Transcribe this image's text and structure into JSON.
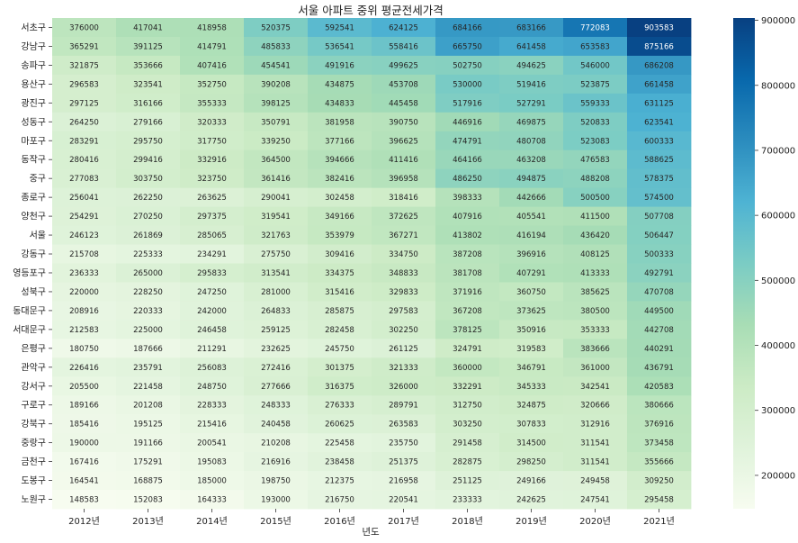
{
  "chart_data": {
    "type": "heatmap",
    "title": "서울 아파트 중위 평균전세가격",
    "xlabel": "년도",
    "ylabel": "",
    "colormap": "GnBu",
    "colorbar": {
      "range": [
        148583,
        903583
      ],
      "ticks": [
        200000,
        300000,
        400000,
        500000,
        600000,
        700000,
        800000,
        900000
      ],
      "tick_labels": [
        "200000",
        "300000",
        "400000",
        "500000",
        "600000",
        "700000",
        "800000",
        "900000"
      ]
    },
    "columns": [
      "2012년",
      "2013년",
      "2014년",
      "2015년",
      "2016년",
      "2017년",
      "2018년",
      "2019년",
      "2020년",
      "2021년"
    ],
    "rows": [
      {
        "label": "서초구",
        "values": [
          376000,
          417041,
          418958,
          520375,
          592541,
          624125,
          684166,
          683166,
          772083,
          903583
        ]
      },
      {
        "label": "강남구",
        "values": [
          365291,
          391125,
          414791,
          485833,
          536541,
          558416,
          665750,
          641458,
          653583,
          875166
        ]
      },
      {
        "label": "송파구",
        "values": [
          321875,
          353666,
          407416,
          454541,
          491916,
          499625,
          502750,
          494625,
          546000,
          686208
        ]
      },
      {
        "label": "용산구",
        "values": [
          296583,
          323541,
          352750,
          390208,
          434875,
          453708,
          530000,
          519416,
          523875,
          661458
        ]
      },
      {
        "label": "광진구",
        "values": [
          297125,
          316166,
          355333,
          398125,
          434833,
          445458,
          517916,
          527291,
          559333,
          631125
        ]
      },
      {
        "label": "성동구",
        "values": [
          264250,
          279166,
          320333,
          350791,
          381958,
          390750,
          446916,
          469875,
          520833,
          623541
        ]
      },
      {
        "label": "마포구",
        "values": [
          283291,
          295750,
          317750,
          339250,
          377166,
          396625,
          474791,
          480708,
          523083,
          600333
        ]
      },
      {
        "label": "동작구",
        "values": [
          280416,
          299416,
          332916,
          364500,
          394666,
          411416,
          464166,
          463208,
          476583,
          588625
        ]
      },
      {
        "label": "중구",
        "values": [
          277083,
          303750,
          323750,
          361416,
          382416,
          396958,
          486250,
          494875,
          488208,
          578375
        ]
      },
      {
        "label": "종로구",
        "values": [
          256041,
          262250,
          263625,
          290041,
          302458,
          318416,
          398333,
          442666,
          500500,
          574500
        ]
      },
      {
        "label": "양천구",
        "values": [
          254291,
          270250,
          297375,
          319541,
          349166,
          372625,
          407916,
          405541,
          411500,
          507708
        ]
      },
      {
        "label": "서울",
        "values": [
          246123,
          261869,
          285065,
          321763,
          353979,
          367271,
          413802,
          416194,
          436420,
          506447
        ]
      },
      {
        "label": "강동구",
        "values": [
          215708,
          225333,
          234291,
          275750,
          309416,
          334750,
          387208,
          396916,
          408125,
          500333
        ]
      },
      {
        "label": "영등포구",
        "values": [
          236333,
          265000,
          295833,
          313541,
          334375,
          348833,
          381708,
          407291,
          413333,
          492791
        ]
      },
      {
        "label": "성북구",
        "values": [
          220000,
          228250,
          247250,
          281000,
          315416,
          329833,
          371916,
          360750,
          385625,
          470708
        ]
      },
      {
        "label": "동대문구",
        "values": [
          208916,
          220333,
          242000,
          264833,
          285875,
          297583,
          367208,
          373625,
          380500,
          449500
        ]
      },
      {
        "label": "서대문구",
        "values": [
          212583,
          225000,
          246458,
          259125,
          282458,
          302250,
          378125,
          350916,
          353333,
          442708
        ]
      },
      {
        "label": "은평구",
        "values": [
          180750,
          187666,
          211291,
          232625,
          245750,
          261125,
          324791,
          319583,
          383666,
          440291
        ]
      },
      {
        "label": "관악구",
        "values": [
          226416,
          235791,
          256083,
          272416,
          301375,
          321333,
          360000,
          346791,
          361000,
          436791
        ]
      },
      {
        "label": "강서구",
        "values": [
          205500,
          221458,
          248750,
          277666,
          316375,
          326000,
          332291,
          345333,
          342541,
          420583
        ]
      },
      {
        "label": "구로구",
        "values": [
          189166,
          201208,
          228333,
          248333,
          276333,
          289791,
          312750,
          324875,
          320666,
          380666
        ]
      },
      {
        "label": "강북구",
        "values": [
          185416,
          195125,
          215416,
          240458,
          260625,
          263583,
          303250,
          307833,
          312916,
          376916
        ]
      },
      {
        "label": "중랑구",
        "values": [
          190000,
          191166,
          200541,
          210208,
          225458,
          235750,
          291458,
          314500,
          311541,
          373458
        ]
      },
      {
        "label": "금천구",
        "values": [
          167416,
          175291,
          195083,
          216916,
          238458,
          251375,
          282875,
          298250,
          311541,
          355666
        ]
      },
      {
        "label": "도봉구",
        "values": [
          164541,
          168875,
          185000,
          198750,
          212375,
          216958,
          251125,
          249166,
          249458,
          309250
        ]
      },
      {
        "label": "노원구",
        "values": [
          148583,
          152083,
          164333,
          193000,
          216750,
          220541,
          233333,
          242625,
          247541,
          295458
        ]
      }
    ]
  }
}
